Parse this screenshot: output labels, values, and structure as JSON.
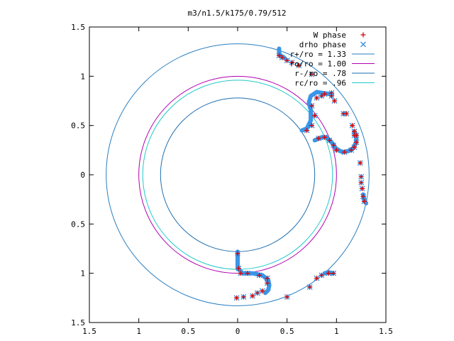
{
  "chart_data": {
    "type": "scatter",
    "title": "m3/n1.5/k175/0.79/512",
    "xlabel": "",
    "ylabel": "",
    "xlim": [
      -1.5,
      1.5
    ],
    "ylim": [
      -1.5,
      1.5
    ],
    "grid": false,
    "legend_position": "top-right",
    "x_ticks": [
      {
        "v": -1.5,
        "label": "1.5"
      },
      {
        "v": -1.0,
        "label": "1"
      },
      {
        "v": -0.5,
        "label": "0.5"
      },
      {
        "v": 0.0,
        "label": "0"
      },
      {
        "v": 0.5,
        "label": "0.5"
      },
      {
        "v": 1.0,
        "label": "1"
      },
      {
        "v": 1.5,
        "label": "1.5"
      }
    ],
    "y_ticks": [
      {
        "v": 1.5,
        "label": "1.5"
      },
      {
        "v": 1.0,
        "label": "1"
      },
      {
        "v": 0.5,
        "label": "0.5"
      },
      {
        "v": 0.0,
        "label": "0"
      },
      {
        "v": -0.5,
        "label": "0.5"
      },
      {
        "v": -1.0,
        "label": "1"
      },
      {
        "v": -1.5,
        "label": "1.5"
      }
    ],
    "circles": [
      {
        "name": "r+/ro = 1.33",
        "r": 1.33,
        "color": "#2a7fc0"
      },
      {
        "name": "ro/ro = 1.00",
        "r": 1.0,
        "color": "#b000b0"
      },
      {
        "name": "r-/ro = .78",
        "r": 0.78,
        "color": "#1e6fb0"
      },
      {
        "name": "rc/ro = .96",
        "r": 0.96,
        "color": "#20c8c8"
      }
    ],
    "series": [
      {
        "name": "W phase",
        "marker": "plus",
        "color": "#e00000",
        "points": [
          [
            0.42,
            1.21
          ],
          [
            0.45,
            1.19
          ],
          [
            0.5,
            1.16
          ],
          [
            0.55,
            1.14
          ],
          [
            0.62,
            1.11
          ],
          [
            0.75,
            1.02
          ],
          [
            0.95,
            0.83
          ],
          [
            1.1,
            0.62
          ],
          [
            1.16,
            0.5
          ],
          [
            1.18,
            0.44
          ],
          [
            1.2,
            0.4
          ],
          [
            1.2,
            0.33
          ],
          [
            1.18,
            0.28
          ],
          [
            1.15,
            0.25
          ],
          [
            1.08,
            0.23
          ],
          [
            1.0,
            0.25
          ],
          [
            0.97,
            0.3
          ],
          [
            0.93,
            0.35
          ],
          [
            0.88,
            0.38
          ],
          [
            0.82,
            0.37
          ],
          [
            0.97,
            -1.0
          ],
          [
            0.92,
            -1.0
          ],
          [
            0.85,
            -1.02
          ],
          [
            0.8,
            -1.05
          ],
          [
            0.73,
            -1.14
          ],
          [
            0.5,
            -1.24
          ],
          [
            -0.01,
            -1.25
          ],
          [
            0.06,
            -1.24
          ],
          [
            0.15,
            -1.23
          ],
          [
            0.2,
            -1.2
          ],
          [
            0.25,
            -1.18
          ],
          [
            0.3,
            -1.1
          ],
          [
            0.3,
            -1.05
          ],
          [
            0.22,
            -1.02
          ],
          [
            0.1,
            -1.0
          ],
          [
            0.03,
            -1.0
          ],
          [
            0.01,
            -0.95
          ],
          [
            0.0,
            -0.8
          ],
          [
            0.7,
            0.45
          ],
          [
            0.75,
            0.5
          ],
          [
            0.78,
            0.6
          ],
          [
            0.75,
            0.7
          ],
          [
            0.8,
            0.78
          ],
          [
            0.85,
            0.8
          ],
          [
            0.88,
            0.82
          ],
          [
            0.95,
            0.8
          ],
          [
            0.98,
            0.75
          ],
          [
            1.07,
            0.62
          ],
          [
            1.18,
            0.4
          ],
          [
            1.24,
            0.12
          ],
          [
            1.25,
            -0.02
          ],
          [
            1.25,
            -0.08
          ],
          [
            1.26,
            -0.14
          ],
          [
            1.27,
            -0.22
          ],
          [
            1.28,
            -0.27
          ]
        ]
      },
      {
        "name": "drho phase",
        "marker": "cross",
        "color": "#2f8fe0",
        "points": [
          [
            0.42,
            1.21
          ],
          [
            0.45,
            1.19
          ],
          [
            0.5,
            1.16
          ],
          [
            0.55,
            1.14
          ],
          [
            0.62,
            1.11
          ],
          [
            0.75,
            1.02
          ],
          [
            0.95,
            0.83
          ],
          [
            1.1,
            0.62
          ],
          [
            1.16,
            0.5
          ],
          [
            1.18,
            0.44
          ],
          [
            1.2,
            0.4
          ],
          [
            1.2,
            0.33
          ],
          [
            1.18,
            0.28
          ],
          [
            1.15,
            0.25
          ],
          [
            1.08,
            0.23
          ],
          [
            1.0,
            0.25
          ],
          [
            0.97,
            0.3
          ],
          [
            0.93,
            0.35
          ],
          [
            0.88,
            0.38
          ],
          [
            0.82,
            0.37
          ],
          [
            0.97,
            -1.0
          ],
          [
            0.92,
            -1.0
          ],
          [
            0.85,
            -1.02
          ],
          [
            0.8,
            -1.05
          ],
          [
            0.73,
            -1.14
          ],
          [
            0.5,
            -1.24
          ],
          [
            -0.01,
            -1.25
          ],
          [
            0.06,
            -1.24
          ],
          [
            0.15,
            -1.23
          ],
          [
            0.2,
            -1.2
          ],
          [
            0.25,
            -1.18
          ],
          [
            0.3,
            -1.1
          ],
          [
            0.3,
            -1.05
          ],
          [
            0.22,
            -1.02
          ],
          [
            0.1,
            -1.0
          ],
          [
            0.03,
            -1.0
          ],
          [
            0.01,
            -0.95
          ],
          [
            0.0,
            -0.8
          ],
          [
            0.7,
            0.45
          ],
          [
            0.75,
            0.5
          ],
          [
            0.78,
            0.6
          ],
          [
            0.75,
            0.7
          ],
          [
            0.8,
            0.78
          ],
          [
            0.85,
            0.8
          ],
          [
            0.88,
            0.82
          ],
          [
            0.95,
            0.8
          ],
          [
            0.98,
            0.75
          ],
          [
            1.07,
            0.62
          ],
          [
            1.18,
            0.4
          ],
          [
            1.24,
            0.12
          ],
          [
            1.25,
            -0.02
          ],
          [
            1.25,
            -0.08
          ],
          [
            1.26,
            -0.14
          ],
          [
            1.27,
            -0.22
          ],
          [
            1.28,
            -0.27
          ]
        ]
      }
    ],
    "phase_curves": [
      [
        [
          0.42,
          1.28
        ],
        [
          0.42,
          1.22
        ],
        [
          0.45,
          1.2
        ],
        [
          0.48,
          1.18
        ]
      ],
      [
        [
          0.78,
          0.35
        ],
        [
          0.85,
          0.38
        ],
        [
          0.9,
          0.38
        ],
        [
          0.95,
          0.33
        ],
        [
          1.0,
          0.26
        ],
        [
          1.06,
          0.23
        ],
        [
          1.12,
          0.24
        ],
        [
          1.17,
          0.27
        ],
        [
          1.2,
          0.33
        ],
        [
          1.2,
          0.4
        ],
        [
          1.18,
          0.44
        ]
      ],
      [
        [
          0.65,
          0.45
        ],
        [
          0.7,
          0.47
        ],
        [
          0.74,
          0.55
        ],
        [
          0.74,
          0.66
        ],
        [
          0.72,
          0.73
        ],
        [
          0.74,
          0.8
        ],
        [
          0.8,
          0.84
        ],
        [
          0.86,
          0.83
        ],
        [
          0.93,
          0.82
        ]
      ],
      [
        [
          0.0,
          -0.78
        ],
        [
          0.0,
          -0.95
        ],
        [
          0.05,
          -1.0
        ],
        [
          0.15,
          -1.0
        ],
        [
          0.25,
          -1.02
        ],
        [
          0.31,
          -1.07
        ],
        [
          0.32,
          -1.12
        ],
        [
          0.31,
          -1.17
        ],
        [
          0.28,
          -1.2
        ]
      ],
      [
        [
          0.88,
          -1.0
        ],
        [
          0.92,
          -0.99
        ],
        [
          0.96,
          -1.0
        ]
      ],
      [
        [
          1.27,
          -0.2
        ],
        [
          1.28,
          -0.25
        ],
        [
          1.3,
          -0.29
        ]
      ]
    ]
  }
}
